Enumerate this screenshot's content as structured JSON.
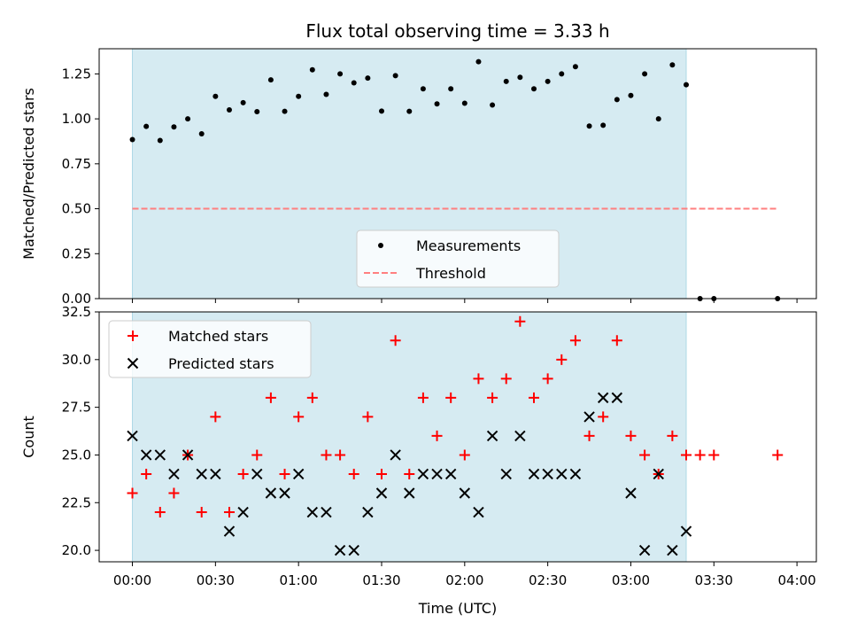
{
  "chart_data": [
    {
      "type": "scatter",
      "title": "Flux total observing time = 3.33 h",
      "ylabel": "Matched/Predicted stars",
      "xlim": [
        "23:48",
        "04:07"
      ],
      "ylim": [
        0,
        1.39
      ],
      "yticks": [
        "0.00",
        "0.25",
        "0.50",
        "0.75",
        "1.00",
        "1.25"
      ],
      "ytick_values": [
        0,
        0.25,
        0.5,
        0.75,
        1.0,
        1.25
      ],
      "shaded_span": [
        "00:00",
        "03:20"
      ],
      "shade_color": "#add8e6",
      "legend": {
        "placement": "lower-center",
        "entries": [
          "Measurements",
          "Threshold"
        ]
      },
      "series": [
        {
          "name": "Measurements",
          "marker": "dot",
          "color": "#000000",
          "x": [
            "00:00",
            "00:05",
            "00:10",
            "00:15",
            "00:20",
            "00:25",
            "00:30",
            "00:35",
            "00:40",
            "00:45",
            "00:50",
            "00:55",
            "01:00",
            "01:05",
            "01:10",
            "01:15",
            "01:20",
            "01:25",
            "01:30",
            "01:35",
            "01:40",
            "01:45",
            "01:50",
            "01:55",
            "02:00",
            "02:05",
            "02:10",
            "02:15",
            "02:20",
            "02:25",
            "02:30",
            "02:35",
            "02:40",
            "02:45",
            "02:50",
            "02:55",
            "03:00",
            "03:05",
            "03:10",
            "03:15",
            "03:20",
            "03:25",
            "03:30",
            "03:53"
          ],
          "y": [
            0.885,
            0.958,
            0.88,
            0.955,
            1.0,
            0.917,
            1.125,
            1.05,
            1.09,
            1.04,
            1.217,
            1.042,
            1.125,
            1.273,
            1.136,
            1.25,
            1.2,
            1.227,
            1.043,
            1.24,
            1.042,
            1.167,
            1.083,
            1.167,
            1.087,
            1.318,
            1.077,
            1.208,
            1.231,
            1.167,
            1.208,
            1.25,
            1.29,
            0.96,
            0.964,
            1.107,
            1.13,
            1.25,
            1.0,
            1.3,
            1.19,
            0,
            0,
            0
          ]
        },
        {
          "name": "Threshold",
          "marker": "dashed-line",
          "color": "#ff7f7f",
          "x": [
            "00:00",
            "03:53"
          ],
          "y": [
            0.5,
            0.5
          ]
        }
      ]
    },
    {
      "type": "scatter",
      "xlabel": "Time (UTC)",
      "ylabel": "Count",
      "xlim": [
        "23:48",
        "04:07"
      ],
      "ylim": [
        19.4,
        32.5
      ],
      "xticks": [
        "00:00",
        "00:30",
        "01:00",
        "01:30",
        "02:00",
        "02:30",
        "03:00",
        "03:30",
        "04:00"
      ],
      "yticks": [
        "20.0",
        "22.5",
        "25.0",
        "27.5",
        "30.0",
        "32.5"
      ],
      "ytick_values": [
        20,
        22.5,
        25,
        27.5,
        30,
        32.5
      ],
      "shaded_span": [
        "00:00",
        "03:20"
      ],
      "shade_color": "#add8e6",
      "legend": {
        "placement": "top-left",
        "entries": [
          "Matched stars",
          "Predicted stars"
        ]
      },
      "series": [
        {
          "name": "Matched stars",
          "marker": "plus",
          "color": "#ff0000",
          "x": [
            "00:00",
            "00:05",
            "00:10",
            "00:15",
            "00:20",
            "00:25",
            "00:30",
            "00:35",
            "00:40",
            "00:45",
            "00:50",
            "00:55",
            "01:00",
            "01:05",
            "01:10",
            "01:15",
            "01:20",
            "01:25",
            "01:30",
            "01:35",
            "01:40",
            "01:45",
            "01:50",
            "01:55",
            "02:00",
            "02:05",
            "02:10",
            "02:15",
            "02:20",
            "02:25",
            "02:30",
            "02:35",
            "02:40",
            "02:45",
            "02:50",
            "02:55",
            "03:00",
            "03:05",
            "03:10",
            "03:15",
            "03:20",
            "03:25",
            "03:30",
            "03:53"
          ],
          "y": [
            23,
            24,
            22,
            23,
            25,
            22,
            27,
            22,
            24,
            25,
            28,
            24,
            27,
            28,
            25,
            25,
            24,
            27,
            24,
            31,
            24,
            28,
            26,
            28,
            25,
            29,
            28,
            29,
            32,
            28,
            29,
            30,
            31,
            26,
            27,
            31,
            26,
            25,
            24,
            26,
            25,
            25,
            25,
            25
          ]
        },
        {
          "name": "Predicted stars",
          "marker": "x",
          "color": "#000000",
          "x": [
            "00:00",
            "00:05",
            "00:10",
            "00:15",
            "00:20",
            "00:25",
            "00:30",
            "00:35",
            "00:40",
            "00:45",
            "00:50",
            "00:55",
            "01:00",
            "01:05",
            "01:10",
            "01:15",
            "01:20",
            "01:25",
            "01:30",
            "01:35",
            "01:40",
            "01:45",
            "01:50",
            "01:55",
            "02:00",
            "02:05",
            "02:10",
            "02:15",
            "02:20",
            "02:25",
            "02:30",
            "02:35",
            "02:40",
            "02:45",
            "02:50",
            "02:55",
            "03:00",
            "03:05",
            "03:10",
            "03:15",
            "03:20"
          ],
          "y": [
            26,
            25,
            25,
            24,
            25,
            24,
            24,
            21,
            22,
            24,
            23,
            23,
            24,
            22,
            22,
            20,
            20,
            22,
            23,
            25,
            23,
            24,
            24,
            24,
            23,
            22,
            26,
            24,
            26,
            24,
            24,
            24,
            24,
            27,
            28,
            28,
            23,
            20,
            24,
            20,
            21
          ]
        }
      ]
    }
  ]
}
